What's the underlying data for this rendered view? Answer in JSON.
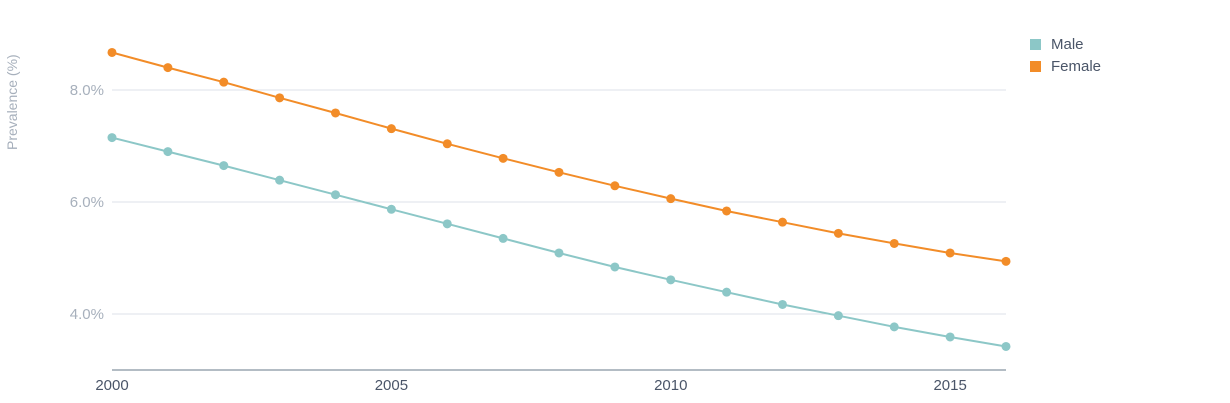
{
  "chart_data": {
    "type": "line",
    "title": "",
    "xlabel": "",
    "ylabel": "Prevalence (%)",
    "x": [
      2000,
      2001,
      2002,
      2003,
      2004,
      2005,
      2006,
      2007,
      2008,
      2009,
      2010,
      2011,
      2012,
      2013,
      2014,
      2015,
      2016
    ],
    "x_ticks": [
      "2000",
      "2005",
      "2010",
      "2015"
    ],
    "y_ticks": [
      "4.0%",
      "6.0%",
      "8.0%"
    ],
    "ylim": [
      3.0,
      9.0
    ],
    "grid": "horizontal",
    "legend_position": "top-right",
    "series": [
      {
        "name": "Male",
        "color": "#8cc7c7",
        "values": [
          7.15,
          6.9,
          6.65,
          6.39,
          6.13,
          5.87,
          5.61,
          5.35,
          5.09,
          4.84,
          4.61,
          4.39,
          4.17,
          3.97,
          3.77,
          3.59,
          3.42
        ]
      },
      {
        "name": "Female",
        "color": "#f28c28",
        "values": [
          8.67,
          8.4,
          8.14,
          7.86,
          7.59,
          7.31,
          7.04,
          6.78,
          6.53,
          6.29,
          6.06,
          5.84,
          5.64,
          5.44,
          5.26,
          5.09,
          4.94
        ]
      }
    ]
  }
}
